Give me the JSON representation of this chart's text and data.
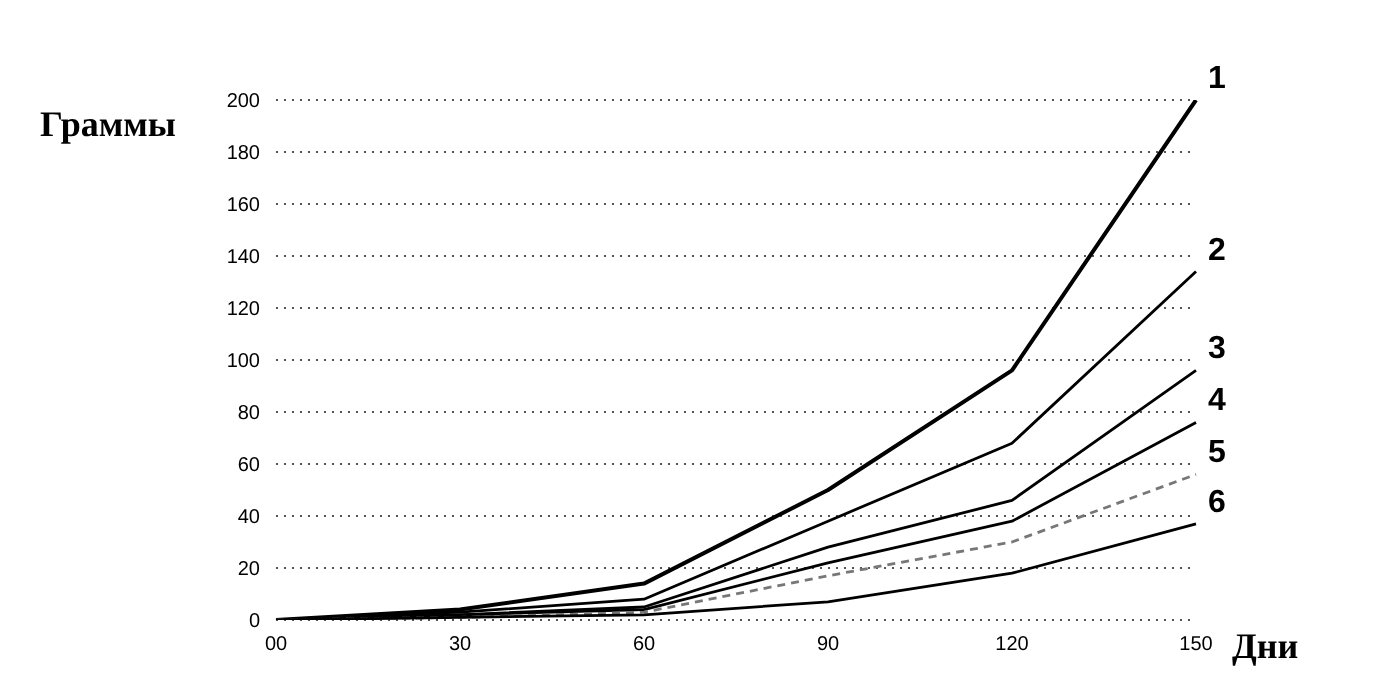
{
  "chart_data": {
    "type": "line",
    "ylabel": "Граммы",
    "xlabel": "Дни",
    "categories": [
      "00",
      "30",
      "60",
      "90",
      "120",
      "150"
    ],
    "ylim": [
      0,
      200
    ],
    "yticks": [
      0,
      20,
      40,
      60,
      80,
      100,
      120,
      140,
      160,
      180,
      200
    ],
    "grid": "y",
    "legend": false,
    "marker": "none",
    "series": [
      {
        "name": "1",
        "color": "#000000",
        "line_style": "solid",
        "values": [
          0,
          4,
          14,
          50,
          96,
          200
        ]
      },
      {
        "name": "2",
        "color": "#000000",
        "line_style": "solid",
        "values": [
          0,
          3,
          8,
          38,
          68,
          134
        ]
      },
      {
        "name": "3",
        "color": "#000000",
        "line_style": "solid",
        "values": [
          0,
          2,
          5,
          28,
          46,
          96
        ]
      },
      {
        "name": "4",
        "color": "#000000",
        "line_style": "solid",
        "values": [
          0,
          2,
          4,
          22,
          38,
          76
        ]
      },
      {
        "name": "5",
        "color": "#777777",
        "line_style": "dashed",
        "values": [
          0,
          1,
          3,
          17,
          30,
          56
        ]
      },
      {
        "name": "6",
        "color": "#000000",
        "line_style": "solid",
        "values": [
          0,
          1,
          2,
          7,
          18,
          37
        ]
      }
    ]
  }
}
